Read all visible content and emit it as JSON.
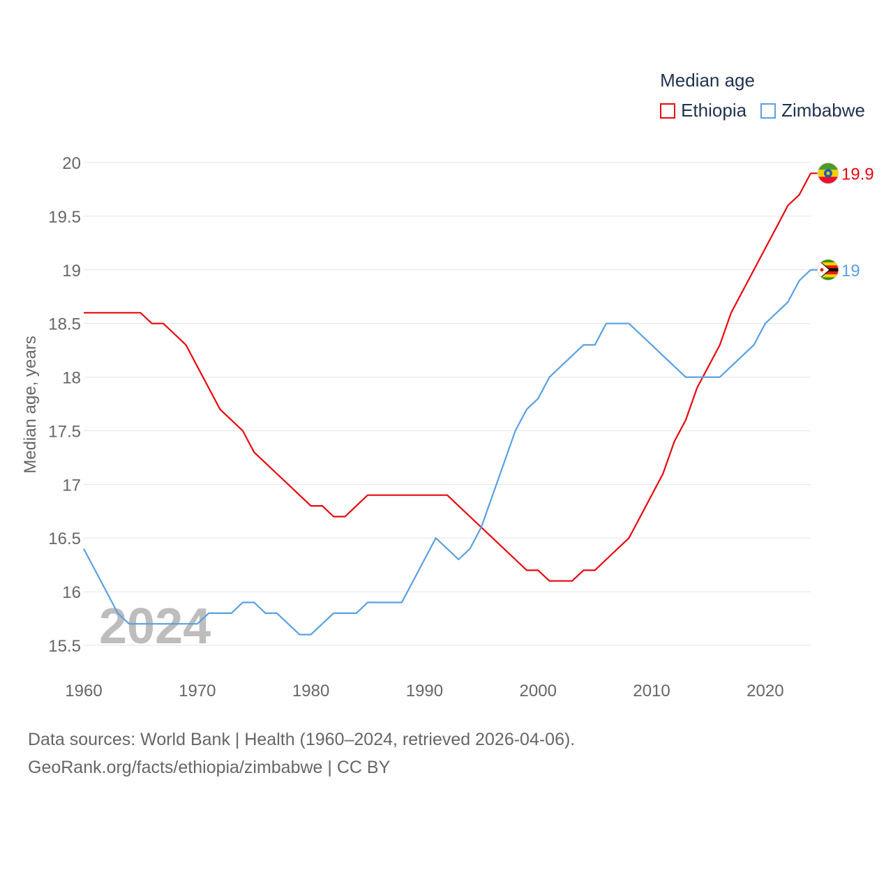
{
  "chart_data": {
    "type": "line",
    "title": "Median age",
    "ylabel": "Median age, years",
    "xlabel": "",
    "xlim": [
      1960,
      2024
    ],
    "ylim": [
      15.3,
      20.1
    ],
    "xticks": [
      "1960",
      "1970",
      "1980",
      "1990",
      "2000",
      "2010",
      "2020"
    ],
    "yticks": [
      "15.5",
      "16",
      "16.5",
      "17",
      "17.5",
      "18",
      "18.5",
      "19",
      "19.5",
      "20"
    ],
    "grid": true,
    "legend_position": "top-right",
    "year_watermark": "2024",
    "x": [
      1960,
      1961,
      1962,
      1963,
      1964,
      1965,
      1966,
      1967,
      1968,
      1969,
      1970,
      1971,
      1972,
      1973,
      1974,
      1975,
      1976,
      1977,
      1978,
      1979,
      1980,
      1981,
      1982,
      1983,
      1984,
      1985,
      1986,
      1987,
      1988,
      1989,
      1990,
      1991,
      1992,
      1993,
      1994,
      1995,
      1996,
      1997,
      1998,
      1999,
      2000,
      2001,
      2002,
      2003,
      2004,
      2005,
      2006,
      2007,
      2008,
      2009,
      2010,
      2011,
      2012,
      2013,
      2014,
      2015,
      2016,
      2017,
      2018,
      2019,
      2020,
      2021,
      2022,
      2023,
      2024
    ],
    "series": [
      {
        "name": "Ethiopia",
        "color": "#e8080d",
        "end_label": "19.9",
        "values": [
          18.6,
          18.6,
          18.6,
          18.6,
          18.6,
          18.6,
          18.5,
          18.5,
          18.4,
          18.3,
          18.1,
          17.9,
          17.7,
          17.6,
          17.5,
          17.3,
          17.2,
          17.1,
          17.0,
          16.9,
          16.8,
          16.8,
          16.7,
          16.7,
          16.8,
          16.9,
          16.9,
          16.9,
          16.9,
          16.9,
          16.9,
          16.9,
          16.9,
          16.8,
          16.7,
          16.6,
          16.5,
          16.4,
          16.3,
          16.2,
          16.2,
          16.1,
          16.1,
          16.1,
          16.2,
          16.2,
          16.3,
          16.4,
          16.5,
          16.7,
          16.9,
          17.1,
          17.4,
          17.6,
          17.9,
          18.1,
          18.3,
          18.6,
          18.8,
          19.0,
          19.2,
          19.4,
          19.6,
          19.7,
          19.9
        ]
      },
      {
        "name": "Zimbabwe",
        "color": "#5aa0e0",
        "end_label": "19",
        "values": [
          16.4,
          16.2,
          16.0,
          15.8,
          15.7,
          15.7,
          15.7,
          15.7,
          15.7,
          15.7,
          15.7,
          15.8,
          15.8,
          15.8,
          15.9,
          15.9,
          15.8,
          15.8,
          15.7,
          15.6,
          15.6,
          15.7,
          15.8,
          15.8,
          15.8,
          15.9,
          15.9,
          15.9,
          15.9,
          16.1,
          16.3,
          16.5,
          16.4,
          16.3,
          16.4,
          16.6,
          16.9,
          17.2,
          17.5,
          17.7,
          17.8,
          18.0,
          18.1,
          18.2,
          18.3,
          18.3,
          18.5,
          18.5,
          18.5,
          18.4,
          18.3,
          18.2,
          18.1,
          18.0,
          18.0,
          18.0,
          18.0,
          18.1,
          18.2,
          18.3,
          18.5,
          18.6,
          18.7,
          18.9,
          19.0
        ]
      }
    ]
  },
  "legend": {
    "title": "Median age",
    "items": [
      "Ethiopia",
      "Zimbabwe"
    ]
  },
  "sources": {
    "line1": "Data sources: World Bank | Health (1960–2024, retrieved 2026-04-06).",
    "line2": "GeoRank.org/facts/ethiopia/zimbabwe | CC BY"
  },
  "flags": {
    "ethiopia": [
      "#4c9a2a",
      "#f5d000",
      "#e8112d",
      "#1e5cb3"
    ],
    "zimbabwe": [
      "#319208",
      "#ffd200",
      "#de2010",
      "#000000",
      "#ffffff"
    ]
  }
}
